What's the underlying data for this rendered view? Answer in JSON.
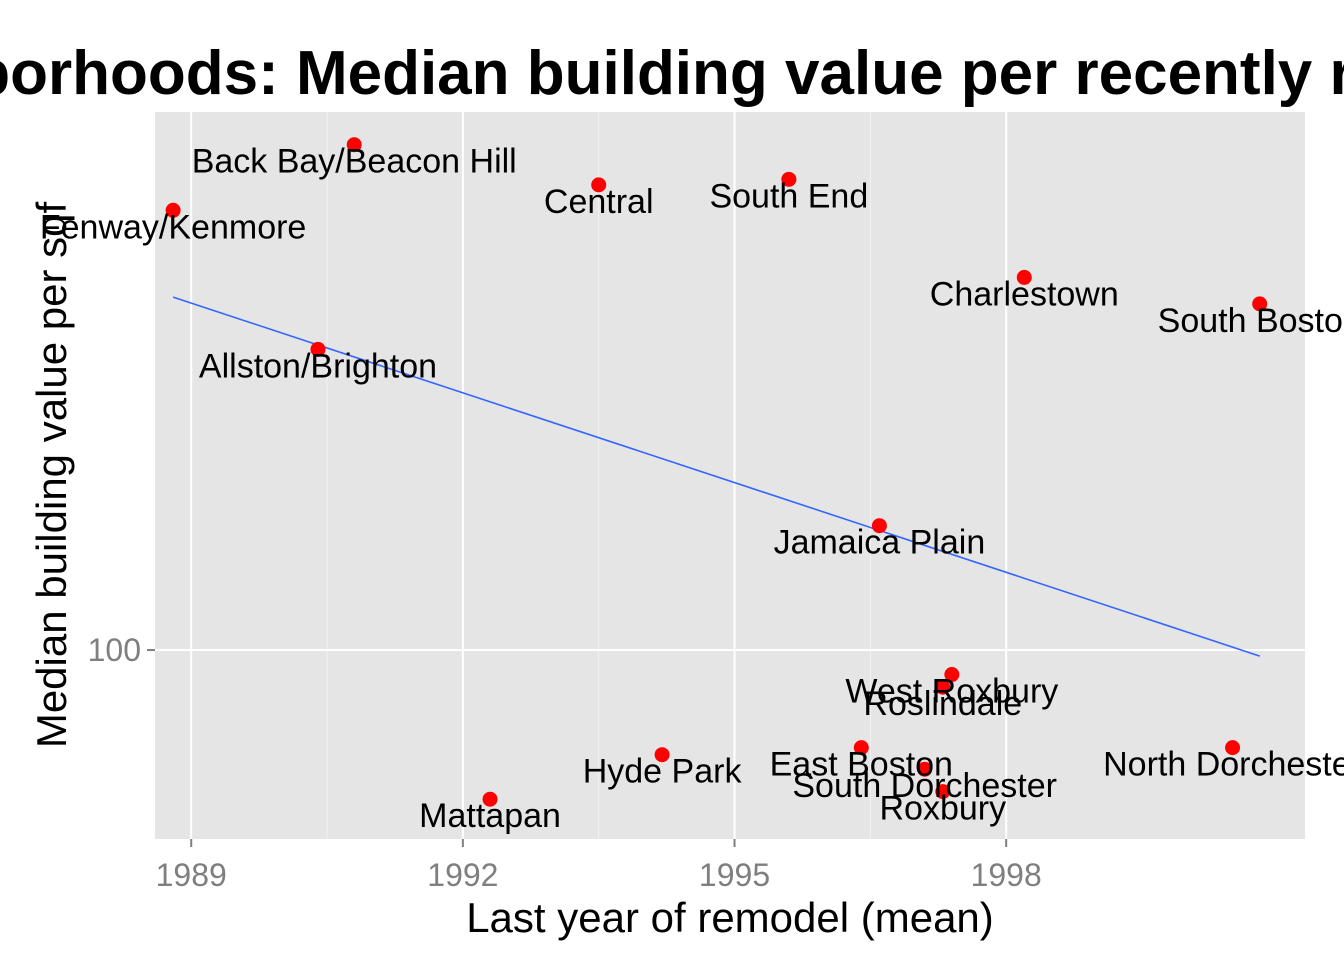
{
  "chart_data": {
    "type": "scatter",
    "title": "Neighborhoods: Median building value per recently remodeled sqft",
    "xlabel": "Last year of remodel (mean)",
    "ylabel": "Median building value per sqf",
    "x_ticks": [
      1989,
      1992,
      1995,
      1998
    ],
    "x_tick_labels": [
      "1989",
      "1992",
      "1995",
      "1998"
    ],
    "y_ticks": [
      100
    ],
    "y_tick_labels": [
      "100"
    ],
    "xlim": [
      1988.6,
      2001.3
    ],
    "y_scale": "log",
    "grid": true,
    "colors": {
      "background": "#e5e5e5",
      "grid": "#ffffff",
      "point": "#ff0000",
      "trend": "#3366ff"
    },
    "points": [
      {
        "label": "Back Bay/Beacon Hill",
        "x": 1990.8,
        "y": 232
      },
      {
        "label": "Fenway/Kenmore",
        "x": 1988.8,
        "y": 208
      },
      {
        "label": "Central",
        "x": 1993.5,
        "y": 217
      },
      {
        "label": "South End",
        "x": 1995.6,
        "y": 219
      },
      {
        "label": "Charlestown",
        "x": 1998.2,
        "y": 186
      },
      {
        "label": "South Boston",
        "x": 2000.8,
        "y": 178
      },
      {
        "label": "Allston/Brighton",
        "x": 1990.4,
        "y": 165
      },
      {
        "label": "Jamaica Plain",
        "x": 1996.6,
        "y": 123
      },
      {
        "label": "West Roxbury",
        "x": 1997.4,
        "y": 96
      },
      {
        "label": "Roslindale",
        "x": 1997.3,
        "y": 94
      },
      {
        "label": "North Dorchester",
        "x": 2000.5,
        "y": 85
      },
      {
        "label": "East Boston",
        "x": 1996.4,
        "y": 85
      },
      {
        "label": "Hyde Park",
        "x": 1994.2,
        "y": 84
      },
      {
        "label": "South Dorchester",
        "x": 1997.1,
        "y": 82
      },
      {
        "label": "Roxbury",
        "x": 1997.3,
        "y": 79
      },
      {
        "label": "Mattapan",
        "x": 1992.3,
        "y": 78
      }
    ],
    "trend_line": {
      "x": [
        1988.8,
        2000.8
      ],
      "y": [
        180,
        99
      ]
    }
  }
}
